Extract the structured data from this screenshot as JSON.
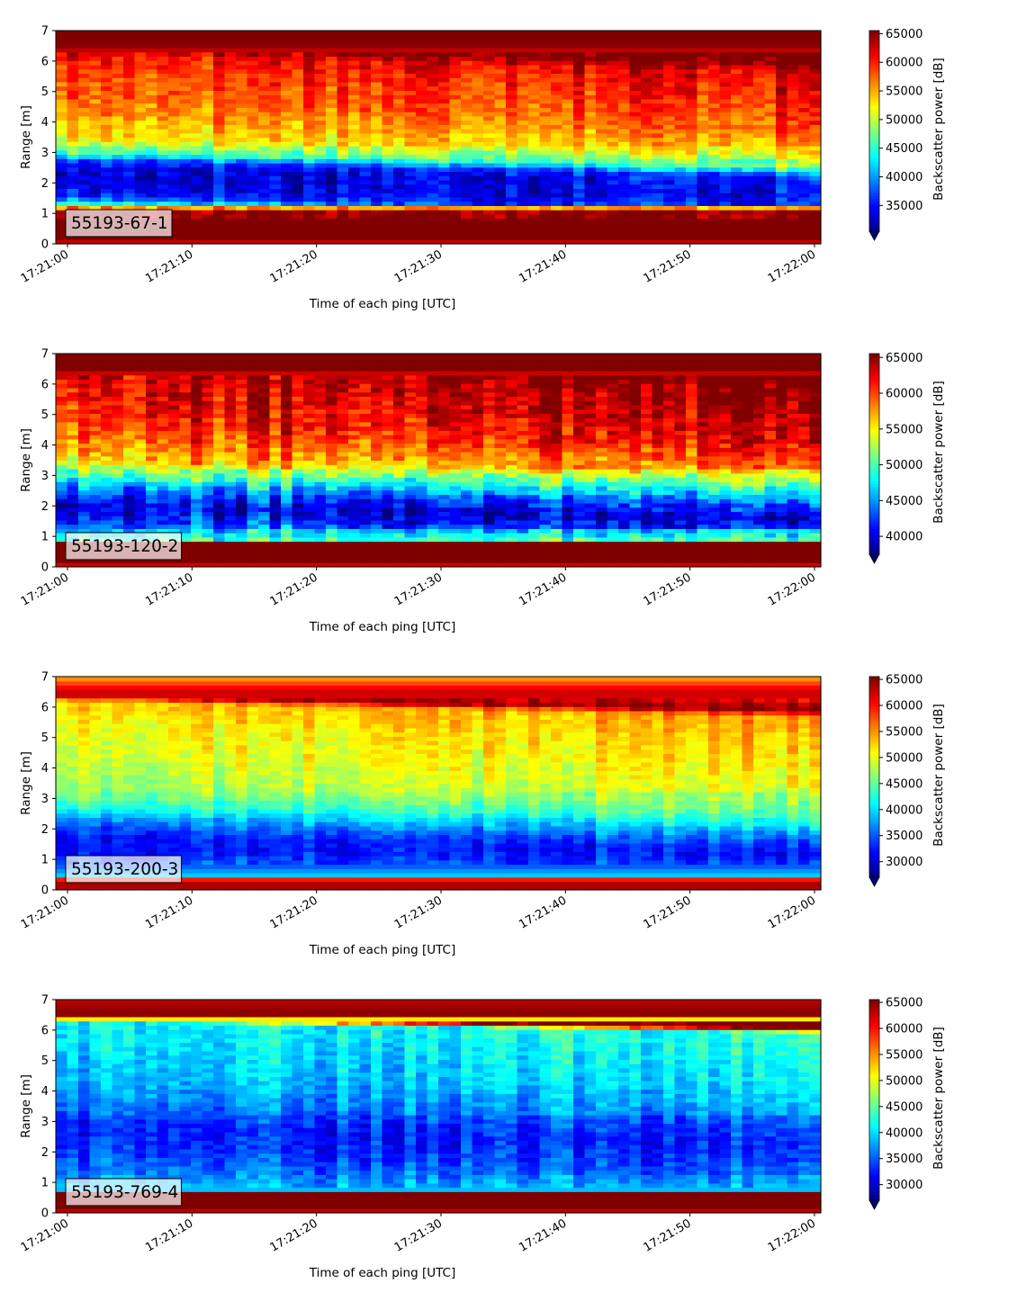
{
  "chart_data": [
    {
      "type": "heatmap",
      "label": "55193-67-1",
      "xlabel": "Time of each ping [UTC]",
      "ylabel": "Range [m]",
      "colorbar_label": "Backscatter power [dB]",
      "colormap": "jet",
      "xticks": [
        "17:21:00",
        "17:21:10",
        "17:21:20",
        "17:21:30",
        "17:21:40",
        "17:21:50",
        "17:22:00"
      ],
      "yticks": [
        0,
        1,
        2,
        3,
        4,
        5,
        6,
        7
      ],
      "colorbar_ticks": [
        35000,
        40000,
        45000,
        50000,
        55000,
        60000,
        65000
      ],
      "ylim": [
        0,
        7
      ],
      "clim": [
        30500,
        65535
      ],
      "profile_m": [
        [
          0.0,
          62000
        ],
        [
          0.2,
          65535
        ],
        [
          1.1,
          65535
        ],
        [
          1.25,
          50000
        ],
        [
          1.4,
          42000
        ],
        [
          1.6,
          36000
        ],
        [
          2.0,
          33500
        ],
        [
          2.5,
          34000
        ],
        [
          2.75,
          36500
        ],
        [
          3.0,
          46000
        ],
        [
          3.5,
          53000
        ],
        [
          4.5,
          57000
        ],
        [
          5.5,
          59000
        ],
        [
          6.2,
          61000
        ],
        [
          6.45,
          64500
        ],
        [
          6.55,
          65535
        ],
        [
          7.0,
          65535
        ]
      ],
      "trend": {
        "boundary_shift_m": -0.5,
        "upper_delta": 2000,
        "lower_delta": 1500
      },
      "noise": 3800
    },
    {
      "type": "heatmap",
      "label": "55193-120-2",
      "xlabel": "Time of each ping [UTC]",
      "ylabel": "Range [m]",
      "colorbar_label": "Backscatter power [dB]",
      "colormap": "jet",
      "xticks": [
        "17:21:00",
        "17:21:10",
        "17:21:20",
        "17:21:30",
        "17:21:40",
        "17:21:50",
        "17:22:00"
      ],
      "yticks": [
        0,
        1,
        2,
        3,
        4,
        5,
        6,
        7
      ],
      "colorbar_ticks": [
        40000,
        45000,
        50000,
        55000,
        60000,
        65000
      ],
      "ylim": [
        0,
        7
      ],
      "clim": [
        37500,
        65535
      ],
      "profile_m": [
        [
          0.0,
          62000
        ],
        [
          0.2,
          65535
        ],
        [
          0.8,
          65535
        ],
        [
          0.9,
          50000
        ],
        [
          1.2,
          47000
        ],
        [
          1.5,
          43000
        ],
        [
          2.0,
          40000
        ],
        [
          2.5,
          44000
        ],
        [
          3.0,
          50000
        ],
        [
          3.5,
          56000
        ],
        [
          4.5,
          60500
        ],
        [
          5.5,
          62500
        ],
        [
          6.4,
          63500
        ],
        [
          6.5,
          65535
        ],
        [
          7.0,
          65535
        ]
      ],
      "trend": {
        "boundary_shift_m": -0.4,
        "upper_delta": 2500,
        "lower_delta": 0
      },
      "noise": 4000
    },
    {
      "type": "heatmap",
      "label": "55193-200-3",
      "xlabel": "Time of each ping [UTC]",
      "ylabel": "Range [m]",
      "colorbar_label": "Backscatter power [dB]",
      "colormap": "jet",
      "xticks": [
        "17:21:00",
        "17:21:10",
        "17:21:20",
        "17:21:30",
        "17:21:40",
        "17:21:50",
        "17:22:00"
      ],
      "yticks": [
        0,
        1,
        2,
        3,
        4,
        5,
        6,
        7
      ],
      "colorbar_ticks": [
        30000,
        35000,
        40000,
        45000,
        50000,
        55000,
        60000,
        65000
      ],
      "ylim": [
        0,
        7
      ],
      "clim": [
        27000,
        65535
      ],
      "profile_m": [
        [
          0.0,
          62000
        ],
        [
          0.15,
          65535
        ],
        [
          0.35,
          60000
        ],
        [
          0.45,
          40000
        ],
        [
          0.8,
          35000
        ],
        [
          1.3,
          32000
        ],
        [
          1.8,
          32500
        ],
        [
          2.3,
          37000
        ],
        [
          2.8,
          43000
        ],
        [
          3.3,
          47000
        ],
        [
          4.5,
          49500
        ],
        [
          5.5,
          51000
        ],
        [
          6.2,
          53000
        ],
        [
          6.4,
          64000
        ],
        [
          6.7,
          60000
        ],
        [
          7.0,
          54000
        ]
      ],
      "trend": {
        "boundary_shift_m": -0.5,
        "upper_delta": 2500,
        "lower_delta": 500
      },
      "noise": 3000
    },
    {
      "type": "heatmap",
      "label": "55193-769-4",
      "xlabel": "Time of each ping [UTC]",
      "ylabel": "Range [m]",
      "colorbar_label": "Backscatter power [dB]",
      "colormap": "jet",
      "xticks": [
        "17:21:00",
        "17:21:10",
        "17:21:20",
        "17:21:30",
        "17:21:40",
        "17:21:50",
        "17:22:00"
      ],
      "yticks": [
        0,
        1,
        2,
        3,
        4,
        5,
        6,
        7
      ],
      "colorbar_ticks": [
        30000,
        35000,
        40000,
        45000,
        50000,
        55000,
        60000,
        65000
      ],
      "ylim": [
        0,
        7
      ],
      "clim": [
        27000,
        65535
      ],
      "profile_m": [
        [
          0.0,
          62000
        ],
        [
          0.2,
          65535
        ],
        [
          0.65,
          65535
        ],
        [
          0.75,
          39000
        ],
        [
          1.2,
          37000
        ],
        [
          2.0,
          34000
        ],
        [
          2.7,
          32500
        ],
        [
          3.5,
          35500
        ],
        [
          4.5,
          38500
        ],
        [
          5.5,
          40000
        ],
        [
          6.3,
          41000
        ],
        [
          6.45,
          64000
        ],
        [
          6.55,
          65535
        ],
        [
          7.0,
          63000
        ]
      ],
      "trend": {
        "boundary_shift_m": -0.4,
        "upper_delta": 2000,
        "lower_delta": 500
      },
      "noise": 3500
    }
  ]
}
